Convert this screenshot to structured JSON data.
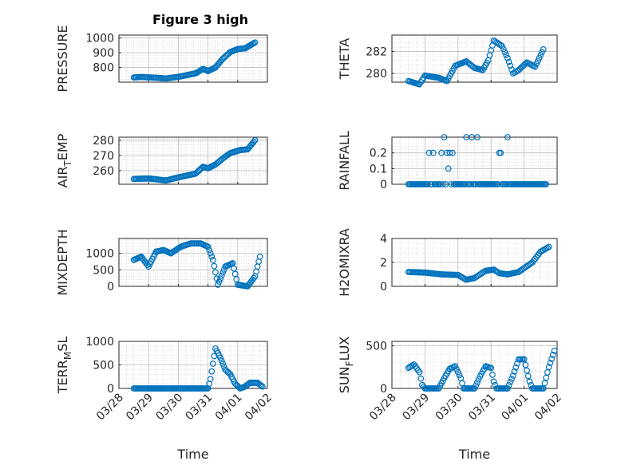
{
  "figure": {
    "title": "Figure 3 high"
  },
  "colors": {
    "marker": "#0072BD",
    "axis": "#262626",
    "grid": "#c8c8c8"
  },
  "chart_data": [
    {
      "type": "scatter",
      "ylabel": "PRESSURE",
      "xlabel": "",
      "title": "Figure 3 high",
      "ylim": [
        700,
        1020
      ],
      "yticks": [
        "1000",
        "900",
        "800"
      ],
      "ytick_values": [
        1000,
        900,
        800
      ],
      "xlim": [
        "03/28",
        "04/02"
      ],
      "grid": "on",
      "x_tick_labels": false,
      "anchors": [
        [
          "03/28 12:00",
          732
        ],
        [
          "03/28 18:00",
          735
        ],
        [
          "03/29 06:00",
          730
        ],
        [
          "03/29 14:00",
          725
        ],
        [
          "03/30 00:00",
          736
        ],
        [
          "03/30 14:00",
          760
        ],
        [
          "03/30 20:00",
          790
        ],
        [
          "03/31 00:00",
          775
        ],
        [
          "03/31 06:00",
          800
        ],
        [
          "03/31 12:00",
          860
        ],
        [
          "03/31 18:00",
          905
        ],
        [
          "04/01 00:00",
          925
        ],
        [
          "04/01 06:00",
          930
        ],
        [
          "04/01 14:00",
          970
        ]
      ]
    },
    {
      "type": "scatter",
      "ylabel": "THETA",
      "xlabel": "",
      "ylim": [
        279.2,
        283.5
      ],
      "yticks": [
        "282",
        "280"
      ],
      "ytick_values": [
        282,
        280
      ],
      "xlim": [
        "03/28",
        "04/02"
      ],
      "grid": "on",
      "x_tick_labels": false,
      "anchors": [
        [
          "03/28 12:00",
          279.3
        ],
        [
          "03/28 20:00",
          279.0
        ],
        [
          "03/29 00:00",
          279.8
        ],
        [
          "03/29 10:00",
          279.6
        ],
        [
          "03/29 16:00",
          279.3
        ],
        [
          "03/29 22:00",
          280.7
        ],
        [
          "03/30 06:00",
          281.1
        ],
        [
          "03/30 12:00",
          280.5
        ],
        [
          "03/30 18:00",
          280.3
        ],
        [
          "03/30 22:00",
          281.2
        ],
        [
          "03/31 02:00",
          283.0
        ],
        [
          "03/31 08:00",
          282.5
        ],
        [
          "03/31 12:00",
          281.4
        ],
        [
          "03/31 16:00",
          280.0
        ],
        [
          "03/31 20:00",
          280.3
        ],
        [
          "04/01 02:00",
          281.0
        ],
        [
          "04/01 08:00",
          280.6
        ],
        [
          "04/01 14:00",
          282.2
        ]
      ]
    },
    {
      "type": "scatter",
      "ylabel": "AIR_TEMP",
      "xlabel": "",
      "ylim": [
        251,
        282
      ],
      "yticks": [
        "280",
        "270",
        "260"
      ],
      "ytick_values": [
        280,
        270,
        260
      ],
      "xlim": [
        "03/28",
        "04/02"
      ],
      "grid": "on",
      "x_tick_labels": false,
      "anchors": [
        [
          "03/28 12:00",
          254.5
        ],
        [
          "03/29 00:00",
          254.8
        ],
        [
          "03/29 14:00",
          253.5
        ],
        [
          "03/30 00:00",
          255.5
        ],
        [
          "03/30 14:00",
          258.0
        ],
        [
          "03/30 20:00",
          262.5
        ],
        [
          "03/31 00:00",
          261.5
        ],
        [
          "03/31 06:00",
          264.0
        ],
        [
          "03/31 12:00",
          268.0
        ],
        [
          "03/31 18:00",
          271.5
        ],
        [
          "04/01 02:00",
          273.5
        ],
        [
          "04/01 08:00",
          274.0
        ],
        [
          "04/01 14:00",
          280.0
        ]
      ]
    },
    {
      "type": "scatter",
      "ylabel": "RAINFALL",
      "xlabel": "",
      "ylim": [
        0,
        0.3
      ],
      "yticks": [
        "0.2",
        "0.1",
        "0"
      ],
      "ytick_values": [
        0.2,
        0.1,
        0
      ],
      "xlim": [
        "03/28",
        "04/02"
      ],
      "grid": "on",
      "x_tick_labels": false,
      "series_base": 0,
      "points": [
        [
          "03/29 03:00",
          0.2
        ],
        [
          "03/29 06:00",
          0.2
        ],
        [
          "03/29 12:00",
          0.2
        ],
        [
          "03/29 14:00",
          0.3
        ],
        [
          "03/29 16:00",
          0.2
        ],
        [
          "03/29 17:00",
          0.1
        ],
        [
          "03/29 18:00",
          0.2
        ],
        [
          "03/29 20:00",
          0.2
        ],
        [
          "03/30 06:00",
          0.3
        ],
        [
          "03/30 10:00",
          0.3
        ],
        [
          "03/30 14:00",
          0.3
        ],
        [
          "03/31 06:00",
          0.2
        ],
        [
          "03/31 07:00",
          0.2
        ],
        [
          "03/31 12:00",
          0.3
        ]
      ]
    },
    {
      "type": "scatter",
      "ylabel": "MIXDEPTH",
      "xlabel": "",
      "ylim": [
        0,
        1450
      ],
      "yticks": [
        "1000",
        "500",
        "0"
      ],
      "ytick_values": [
        1000,
        500,
        0
      ],
      "xlim": [
        "03/28",
        "04/02"
      ],
      "grid": "on",
      "x_tick_labels": false,
      "anchors": [
        [
          "03/28 12:00",
          800
        ],
        [
          "03/28 18:00",
          900
        ],
        [
          "03/29 00:00",
          600
        ],
        [
          "03/29 06:00",
          1050
        ],
        [
          "03/29 12:00",
          1100
        ],
        [
          "03/29 18:00",
          1000
        ],
        [
          "03/30 02:00",
          1200
        ],
        [
          "03/30 10:00",
          1300
        ],
        [
          "03/30 18:00",
          1300
        ],
        [
          "03/31 00:00",
          1200
        ],
        [
          "03/31 04:00",
          800
        ],
        [
          "03/31 08:00",
          50
        ],
        [
          "03/31 14:00",
          600
        ],
        [
          "03/31 20:00",
          700
        ],
        [
          "04/01 00:00",
          50
        ],
        [
          "04/01 08:00",
          0
        ],
        [
          "04/01 14:00",
          300
        ],
        [
          "04/01 18:00",
          900
        ]
      ]
    },
    {
      "type": "scatter",
      "ylabel": "H2OMIXRA",
      "xlabel": "",
      "ylim": [
        0,
        4
      ],
      "yticks": [
        "4",
        "2",
        "0"
      ],
      "ytick_values": [
        4,
        2,
        0
      ],
      "xlim": [
        "03/28",
        "04/02"
      ],
      "grid": "on",
      "x_tick_labels": false,
      "anchors": [
        [
          "03/28 12:00",
          1.2
        ],
        [
          "03/29 00:00",
          1.15
        ],
        [
          "03/29 12:00",
          1.0
        ],
        [
          "03/30 00:00",
          0.95
        ],
        [
          "03/30 06:00",
          0.55
        ],
        [
          "03/30 12:00",
          0.7
        ],
        [
          "03/30 20:00",
          1.3
        ],
        [
          "03/31 02:00",
          1.4
        ],
        [
          "03/31 06:00",
          1.1
        ],
        [
          "03/31 12:00",
          1.0
        ],
        [
          "03/31 20:00",
          1.2
        ],
        [
          "04/01 06:00",
          2.0
        ],
        [
          "04/01 12:00",
          2.9
        ],
        [
          "04/01 18:00",
          3.3
        ]
      ]
    },
    {
      "type": "scatter",
      "ylabel": "TERR_MSL",
      "xlabel": "Time",
      "ylim": [
        0,
        1000
      ],
      "yticks": [
        "1000",
        "500",
        "0"
      ],
      "ytick_values": [
        1000,
        500,
        0
      ],
      "xlim": [
        "03/28",
        "04/02"
      ],
      "grid": "on",
      "x_tick_labels": true,
      "anchors": [
        [
          "03/28 12:00",
          0
        ],
        [
          "03/31 00:00",
          0
        ],
        [
          "03/31 02:00",
          200
        ],
        [
          "03/31 06:00",
          850
        ],
        [
          "03/31 10:00",
          650
        ],
        [
          "03/31 14:00",
          400
        ],
        [
          "03/31 18:00",
          300
        ],
        [
          "03/31 22:00",
          100
        ],
        [
          "04/01 02:00",
          0
        ],
        [
          "04/01 06:00",
          40
        ],
        [
          "04/01 10:00",
          120
        ],
        [
          "04/01 16:00",
          120
        ],
        [
          "04/01 20:00",
          40
        ]
      ]
    },
    {
      "type": "scatter",
      "ylabel": "SUN_FLUX",
      "xlabel": "Time",
      "ylim": [
        0,
        550
      ],
      "yticks": [
        "500",
        "0"
      ],
      "ytick_values": [
        500,
        0
      ],
      "xlim": [
        "03/28",
        "04/02"
      ],
      "grid": "on",
      "x_tick_labels": true,
      "anchors": [
        [
          "03/28 12:00",
          240
        ],
        [
          "03/28 16:00",
          280
        ],
        [
          "03/28 20:00",
          190
        ],
        [
          "03/28 22:00",
          40
        ],
        [
          "03/29 00:00",
          0
        ],
        [
          "03/29 10:00",
          0
        ],
        [
          "03/29 14:00",
          120
        ],
        [
          "03/29 18:00",
          230
        ],
        [
          "03/29 22:00",
          260
        ],
        [
          "03/30 02:00",
          120
        ],
        [
          "03/30 04:00",
          0
        ],
        [
          "03/30 12:00",
          0
        ],
        [
          "03/30 16:00",
          140
        ],
        [
          "03/30 20:00",
          260
        ],
        [
          "03/31 00:00",
          240
        ],
        [
          "03/31 02:00",
          80
        ],
        [
          "03/31 04:00",
          0
        ],
        [
          "03/31 12:00",
          0
        ],
        [
          "03/31 16:00",
          150
        ],
        [
          "03/31 20:00",
          340
        ],
        [
          "04/01 00:00",
          340
        ],
        [
          "04/01 04:00",
          80
        ],
        [
          "04/01 06:00",
          0
        ],
        [
          "04/01 14:00",
          0
        ],
        [
          "04/01 18:00",
          250
        ],
        [
          "04/01 22:00",
          440
        ]
      ]
    }
  ],
  "x_tick_labels": [
    "03/28",
    "03/29",
    "03/30",
    "03/31",
    "04/01",
    "04/02"
  ]
}
